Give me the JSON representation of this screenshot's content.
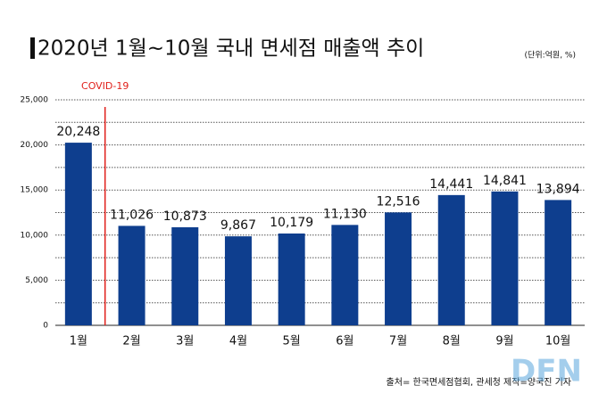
{
  "chart_data": {
    "type": "bar",
    "title": "2020년 1월~10월 국내 면세점 매출액 추이",
    "subtitle": "(단위:억원, %)",
    "source": "출처= 한국면세점협회, 관세청 제작=양국진 기자",
    "watermark": "DFN",
    "annotation": {
      "text": "COVID-19",
      "after_category": 0,
      "color": "#e0201b"
    },
    "categories": [
      "1월",
      "2월",
      "3월",
      "4월",
      "5월",
      "6월",
      "7월",
      "8월",
      "9월",
      "10월"
    ],
    "values": [
      20248,
      11026,
      10873,
      9867,
      10179,
      11130,
      12516,
      14441,
      14841,
      13894
    ],
    "value_labels": [
      "20,248",
      "11,026",
      "10,873",
      "9,867",
      "10,179",
      "11,130",
      "12,516",
      "14,441",
      "14,841",
      "13,894"
    ],
    "color": "#0e3e8e",
    "ylim": [
      0,
      25000
    ],
    "yticks": [
      0,
      {
        "value": 5000,
        "label": "5,000"
      },
      {
        "value": 10000,
        "label": "10,000"
      },
      {
        "value": 15000,
        "label": "15,000"
      },
      {
        "value": 20000,
        "label": "20,000"
      },
      {
        "value": 25000,
        "label": "25,000"
      }
    ],
    "yticks_minor": [
      2500,
      7500,
      12500,
      17500,
      22500
    ],
    "grid": true
  }
}
